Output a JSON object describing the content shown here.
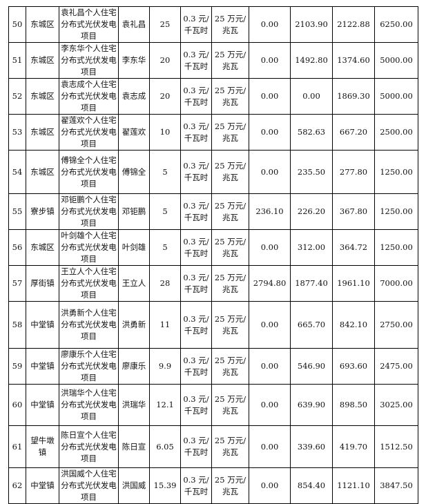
{
  "table": {
    "price_line1": "0.3 元/",
    "price_line2": "千瓦时",
    "subsidy_line1": "25 万元/",
    "subsidy_line2": "兆瓦",
    "rows": [
      {
        "no": "50",
        "district": "东城区",
        "project": "袁礼昌个人住宅分布式光伏发电项目",
        "owner": "袁礼昌",
        "capacity": "25",
        "v1": "0.00",
        "v2": "2103.90",
        "v3": "2122.88",
        "v4": "6250.00"
      },
      {
        "no": "51",
        "district": "东城区",
        "project": "李东华个人住宅分布式光伏发电项目",
        "owner": "李东华",
        "capacity": "20",
        "v1": "0.00",
        "v2": "1492.80",
        "v3": "1374.60",
        "v4": "5000.00"
      },
      {
        "no": "52",
        "district": "东城区",
        "project": "袁志成个人住宅分布式光伏发电项目",
        "owner": "袁志成",
        "capacity": "20",
        "v1": "0.00",
        "v2": "0.00",
        "v3": "1869.30",
        "v4": "5000.00"
      },
      {
        "no": "53",
        "district": "东城区",
        "project": "翟莲欢个人住宅分布式光伏发电项目",
        "owner": "翟莲欢",
        "capacity": "10",
        "v1": "0.00",
        "v2": "582.63",
        "v3": "667.20",
        "v4": "2500.00"
      },
      {
        "no": "54",
        "district": "东城区",
        "project": "傅锦全个人住宅分布式光伏发电项目",
        "owner": "傅锦全",
        "capacity": "5",
        "v1": "0.00",
        "v2": "235.50",
        "v3": "277.80",
        "v4": "1250.00"
      },
      {
        "no": "55",
        "district": "寮步镇",
        "project": "邓钜鹏个人住宅分布式光伏发电项目",
        "owner": "邓钜鹏",
        "capacity": "5",
        "v1": "236.10",
        "v2": "226.20",
        "v3": "367.80",
        "v4": "1250.00"
      },
      {
        "no": "56",
        "district": "东城区",
        "project": "叶剑雄个人住宅分布式光伏发电项目",
        "owner": "叶剑雄",
        "capacity": "5",
        "v1": "0.00",
        "v2": "312.00",
        "v3": "364.72",
        "v4": "1250.00"
      },
      {
        "no": "57",
        "district": "厚街镇",
        "project": "王立人个人住宅分布式光伏发电项目",
        "owner": "王立人",
        "capacity": "28",
        "v1": "2794.80",
        "v2": "1877.40",
        "v3": "1961.10",
        "v4": "7000.00"
      },
      {
        "no": "58",
        "district": "中堂镇",
        "project": "洪勇新个人住宅分布式光伏发电项目",
        "owner": "洪勇新",
        "capacity": "11",
        "v1": "0.00",
        "v2": "665.70",
        "v3": "842.10",
        "v4": "2750.00"
      },
      {
        "no": "59",
        "district": "中堂镇",
        "project": "廖康乐个人住宅分布式光伏发电项目",
        "owner": "廖康乐",
        "capacity": "9.9",
        "v1": "0.00",
        "v2": "546.90",
        "v3": "693.60",
        "v4": "2475.00"
      },
      {
        "no": "60",
        "district": "中堂镇",
        "project": "洪瑞华个人住宅分布式光伏发电项目",
        "owner": "洪瑞华",
        "capacity": "12.1",
        "v1": "0.00",
        "v2": "639.90",
        "v3": "898.50",
        "v4": "3025.00"
      },
      {
        "no": "61",
        "district": "望牛墩镇",
        "project": "陈日宣个人住宅分布式光伏发电项目",
        "owner": "陈日宣",
        "capacity": "6.05",
        "v1": "0.00",
        "v2": "339.60",
        "v3": "419.70",
        "v4": "1512.50"
      },
      {
        "no": "62",
        "district": "中堂镇",
        "project": "洪国威个人住宅分布式光伏发电项目",
        "owner": "洪国威",
        "capacity": "15.39",
        "v1": "0.00",
        "v2": "854.40",
        "v3": "1121.10",
        "v4": "3847.50"
      }
    ]
  }
}
